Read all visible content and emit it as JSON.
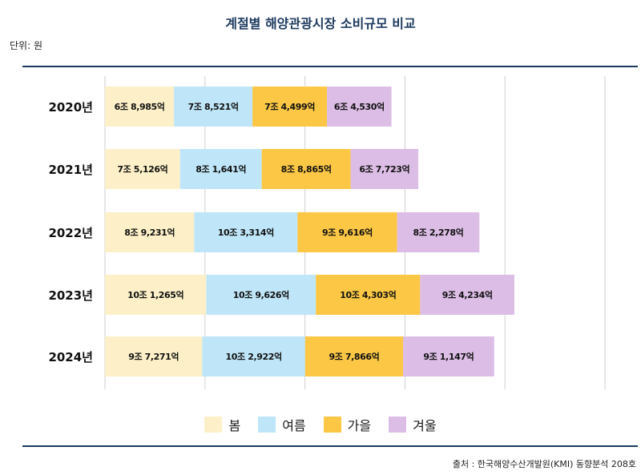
{
  "title": "계절별 해양관광시장 소비규모 비교",
  "unit": "단위: 원",
  "source": "출처 : 한국해양수산개발원(KMI) 동향분석 208호",
  "chart_data": {
    "type": "bar",
    "orientation": "horizontal",
    "stacked": true,
    "title": "계절별 해양관광시장 소비규모 비교",
    "xlabel": "",
    "ylabel": "",
    "categories": [
      "2020년",
      "2021년",
      "2022년",
      "2023년",
      "2024년"
    ],
    "series": [
      {
        "name": "봄",
        "color": "#fdf0c8",
        "values": [
          68985,
          75126,
          89231,
          101265,
          97271
        ],
        "labels": [
          "6조 8,985억",
          "7조 5,126억",
          "8조 9,231억",
          "10조 1,265억",
          "9조 7,271억"
        ]
      },
      {
        "name": "여름",
        "color": "#bfe6f8",
        "values": [
          78521,
          81641,
          103314,
          109626,
          102922
        ],
        "labels": [
          "7조 8,521억",
          "8조 1,641억",
          "10조 3,314억",
          "10조 9,626억",
          "10조 2,922억"
        ]
      },
      {
        "name": "가을",
        "color": "#fcc745",
        "values": [
          74499,
          88865,
          99616,
          104303,
          97866
        ],
        "labels": [
          "7조 4,499억",
          "8조 8,865억",
          "9조 9,616억",
          "10조 4,303억",
          "9조 7,866억"
        ]
      },
      {
        "name": "겨울",
        "color": "#dcbde5",
        "values": [
          64530,
          67723,
          82278,
          94234,
          91147
        ],
        "labels": [
          "6조 4,530억",
          "6조 7,723억",
          "8조 2,278억",
          "9조 4,234억",
          "9조 1,147억"
        ]
      }
    ],
    "xlim": [
      0,
      500000
    ],
    "grid": true,
    "legend_position": "bottom"
  }
}
